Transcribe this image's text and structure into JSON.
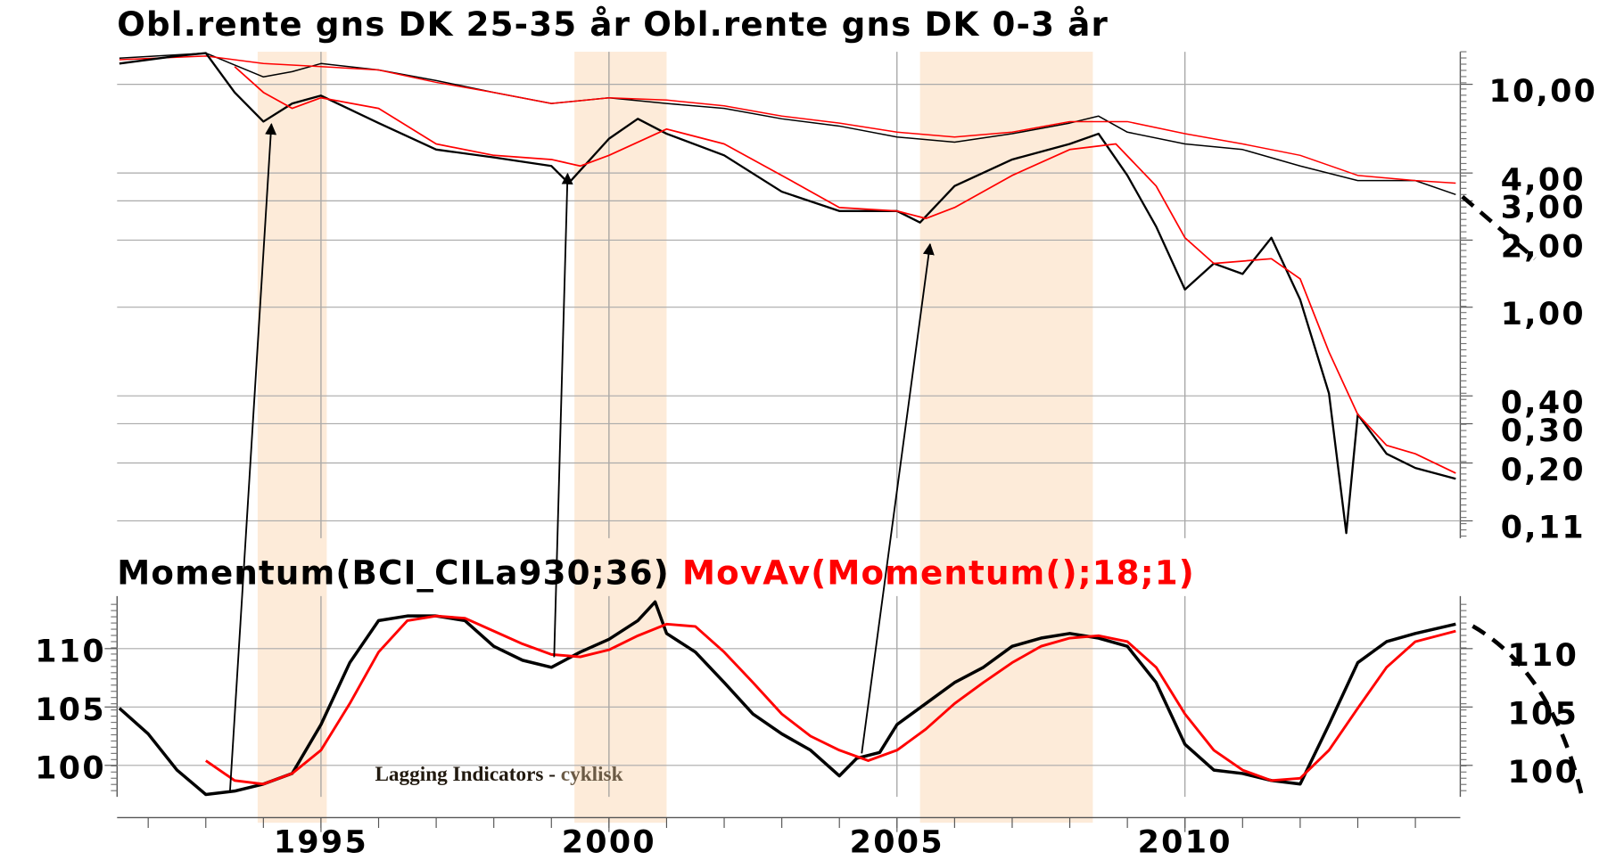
{
  "shaded_spans": [
    [
      1993.9,
      1995.1
    ],
    [
      1999.4,
      2001.0
    ],
    [
      2005.4,
      2008.4
    ]
  ],
  "chart_data": [
    {
      "type": "line",
      "log_scale": true,
      "grid": true,
      "xlim": [
        1991.46,
        2014.78
      ],
      "xticks": [
        1995,
        2000,
        2005,
        2010
      ],
      "ylim": [
        0.092,
        14
      ],
      "yticks": [
        {
          "value": 10,
          "label": "10,00"
        },
        {
          "value": 4,
          "label": "4,00"
        },
        {
          "value": 3,
          "label": "3,00"
        },
        {
          "value": 2,
          "label": "2,00"
        },
        {
          "value": 1,
          "label": "1,00"
        },
        {
          "value": 0.4,
          "label": "0,40"
        },
        {
          "value": 0.3,
          "label": "0,30"
        },
        {
          "value": 0.2,
          "label": "0,20"
        },
        {
          "value": 0.11,
          "label": "0,11"
        }
      ],
      "series": [
        {
          "name": "Obl.rente gns DK 25-35 år",
          "color": "#000000",
          "x": [
            1991.5,
            1993,
            1994,
            1994.5,
            1995,
            1996,
            1997,
            1998,
            1999,
            2000,
            2001,
            2002,
            2003,
            2004,
            2005,
            2006,
            2007,
            2008,
            2008.5,
            2009,
            2010,
            2011,
            2012,
            2013,
            2014,
            2014.7
          ],
          "values": [
            13.1,
            13.8,
            10.8,
            11.4,
            12.4,
            11.6,
            10.4,
            9.2,
            8.2,
            8.7,
            8.2,
            7.8,
            7.0,
            6.5,
            5.8,
            5.5,
            6.0,
            6.7,
            7.2,
            6.1,
            5.4,
            5.1,
            4.3,
            3.7,
            3.7,
            3.2
          ]
        },
        {
          "color": "#ff0000",
          "x": [
            1991.5,
            1993,
            1994,
            1995,
            1996,
            1997,
            1998,
            1999,
            2000,
            2001,
            2002,
            2003,
            2004,
            2005,
            2006,
            2007,
            2008,
            2009,
            2010,
            2011,
            2012,
            2013,
            2014,
            2014.7
          ],
          "values": [
            12.9,
            13.4,
            12.4,
            12.0,
            11.6,
            10.2,
            9.2,
            8.2,
            8.7,
            8.5,
            8.0,
            7.2,
            6.7,
            6.1,
            5.8,
            6.1,
            6.8,
            6.8,
            6.0,
            5.4,
            4.8,
            3.9,
            3.7,
            3.6
          ]
        },
        {
          "name": "Obl.rente gns DK 0-3 år",
          "color": "#000000",
          "x": [
            1991.5,
            1992.5,
            1993,
            1993.5,
            1994,
            1994.5,
            1995,
            1996,
            1997,
            1998,
            1999,
            1999.3,
            2000,
            2000.5,
            2001,
            2002,
            2003,
            2004,
            2005,
            2005.4,
            2006,
            2007,
            2008,
            2008.5,
            2009,
            2009.5,
            2010,
            2010.5,
            2011,
            2011.5,
            2012,
            2012.5,
            2012.8,
            2013,
            2013.5,
            2014,
            2014.7
          ],
          "values": [
            12.4,
            13.4,
            13.8,
            9.2,
            6.8,
            8.2,
            8.9,
            6.7,
            5.1,
            4.7,
            4.3,
            3.6,
            5.7,
            7.0,
            6.0,
            4.8,
            3.3,
            2.7,
            2.7,
            2.4,
            3.5,
            4.6,
            5.4,
            6.0,
            3.9,
            2.3,
            1.2,
            1.57,
            1.41,
            2.05,
            1.08,
            0.41,
            0.097,
            0.33,
            0.22,
            0.19,
            0.17
          ]
        },
        {
          "color": "#ff0000",
          "x": [
            1993.5,
            1994,
            1994.5,
            1995,
            1996,
            1997,
            1998,
            1999,
            1999.5,
            2000,
            2001,
            2002,
            2003,
            2004,
            2005,
            2005.5,
            2006,
            2007,
            2008,
            2008.8,
            2009.5,
            2010,
            2010.5,
            2011.5,
            2012,
            2012.5,
            2013,
            2013.5,
            2014,
            2014.7
          ],
          "values": [
            12.0,
            9.2,
            7.8,
            8.7,
            7.8,
            5.4,
            4.8,
            4.6,
            4.3,
            4.8,
            6.3,
            5.4,
            3.9,
            2.8,
            2.7,
            2.5,
            2.8,
            3.9,
            5.1,
            5.4,
            3.5,
            2.05,
            1.57,
            1.65,
            1.34,
            0.63,
            0.33,
            0.24,
            0.22,
            0.18
          ]
        }
      ]
    },
    {
      "type": "line",
      "grid": true,
      "xlim": [
        1991.46,
        2014.78
      ],
      "xticks": [
        1995,
        2000,
        2005,
        2010
      ],
      "ylim": [
        97.3,
        114.5
      ],
      "yticks": [
        110,
        105,
        100
      ],
      "annotation": [
        "Lagging Indicators -",
        "cyklisk"
      ],
      "series": [
        {
          "name": "Momentum(BCI_CILa930;36)",
          "color": "#000000",
          "x": [
            1991.5,
            1992,
            1992.5,
            1993,
            1993.5,
            1994,
            1994.5,
            1995,
            1995.5,
            1996,
            1996.5,
            1997,
            1997.5,
            1998,
            1998.5,
            1999,
            1999.5,
            2000,
            2000.5,
            2000.8,
            2001,
            2001.5,
            2002,
            2002.5,
            2003,
            2003.5,
            2004,
            2004.3,
            2004.7,
            2005,
            2005.5,
            2006,
            2006.5,
            2007,
            2007.5,
            2008,
            2008.5,
            2009,
            2009.5,
            2010,
            2010.5,
            2011,
            2011.5,
            2012,
            2012.5,
            2013,
            2013.5,
            2014,
            2014.7
          ],
          "values": [
            104.9,
            102.7,
            99.6,
            97.5,
            97.8,
            98.4,
            99.3,
            103.5,
            108.8,
            112.4,
            112.8,
            112.8,
            112.4,
            110.2,
            109.0,
            108.4,
            109.7,
            110.8,
            112.4,
            114.0,
            111.3,
            109.7,
            107.1,
            104.4,
            102.7,
            101.3,
            99.1,
            100.6,
            101.1,
            103.5,
            105.3,
            107.1,
            108.4,
            110.2,
            110.9,
            111.3,
            110.9,
            110.2,
            107.1,
            101.8,
            99.6,
            99.3,
            98.7,
            98.4,
            103.5,
            108.8,
            110.6,
            111.3,
            112.1
          ]
        },
        {
          "name": "MovAv(Momentum();18;1)",
          "color": "#ff0000",
          "x": [
            1993,
            1993.5,
            1994,
            1994.5,
            1995,
            1995.5,
            1996,
            1996.5,
            1997,
            1997.5,
            1998,
            1998.5,
            1999,
            1999.5,
            2000,
            2000.5,
            2001,
            2001.5,
            2002,
            2002.5,
            2003,
            2003.5,
            2004,
            2004.5,
            2005,
            2005.5,
            2006,
            2006.5,
            2007,
            2007.5,
            2008,
            2008.5,
            2009,
            2009.5,
            2010,
            2010.5,
            2011,
            2011.5,
            2012,
            2012.5,
            2013,
            2013.5,
            2014,
            2014.7
          ],
          "values": [
            100.4,
            98.7,
            98.4,
            99.3,
            101.3,
            105.3,
            109.7,
            112.4,
            112.8,
            112.6,
            111.5,
            110.4,
            109.5,
            109.3,
            109.9,
            111.1,
            112.1,
            111.9,
            109.7,
            107.1,
            104.4,
            102.5,
            101.3,
            100.4,
            101.3,
            103.1,
            105.3,
            107.1,
            108.8,
            110.2,
            110.9,
            111.1,
            110.6,
            108.4,
            104.4,
            101.3,
            99.6,
            98.7,
            98.9,
            101.3,
            104.9,
            108.4,
            110.6,
            111.5
          ]
        }
      ]
    }
  ]
}
